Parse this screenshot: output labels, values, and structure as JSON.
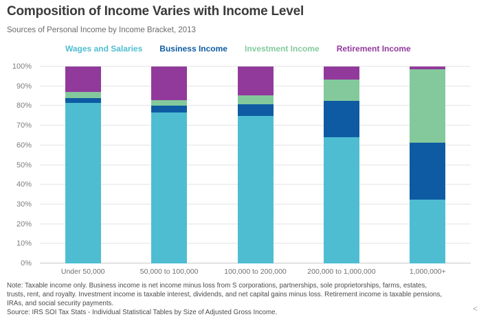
{
  "title": "Composition of Income Varies with Income Level",
  "subtitle": "Sources of Personal Income by Income Bracket, 2013",
  "legend": [
    {
      "label": "Wages and Salaries",
      "color": "#4fbdd1"
    },
    {
      "label": "Business Income",
      "color": "#0e5ba3"
    },
    {
      "label": "Investment Income",
      "color": "#83c99c"
    },
    {
      "label": "Retirement Income",
      "color": "#913a9c"
    }
  ],
  "chart_data": {
    "type": "bar",
    "stacked": true,
    "title": "Composition of Income Varies with Income Level",
    "subtitle": "Sources of Personal Income by Income Bracket, 2013",
    "xlabel": "",
    "ylabel": "",
    "ylim": [
      0,
      100
    ],
    "grid": true,
    "legend_position": "top",
    "units": "percent",
    "categories": [
      "Under 50,000",
      "50,000 to 100,000",
      "100,000 to 200,000",
      "200,000 to 1,000,000",
      "1,000,000+"
    ],
    "yticks": [
      "0%",
      "10%",
      "20%",
      "30%",
      "40%",
      "50%",
      "60%",
      "70%",
      "80%",
      "90%",
      "100%"
    ],
    "series": [
      {
        "name": "Wages and Salaries",
        "color": "#4fbdd1",
        "values": [
          81.5,
          76.5,
          75.0,
          64.0,
          32.5
        ]
      },
      {
        "name": "Business Income",
        "color": "#0e5ba3",
        "values": [
          2.5,
          3.5,
          6.0,
          18.5,
          29.0
        ]
      },
      {
        "name": "Investment Income",
        "color": "#83c99c",
        "values": [
          3.0,
          3.0,
          4.5,
          11.0,
          37.0
        ]
      },
      {
        "name": "Retirement Income",
        "color": "#913a9c",
        "values": [
          13.0,
          17.0,
          14.5,
          6.5,
          1.5
        ]
      }
    ]
  },
  "footer": {
    "note_lines": [
      "Note: Taxable income only. Business income is net income minus loss from S corporations, partnerships, sole proprietorships, farms, estates,",
      "trusts, rent, and royalty. Investment income is taxable interest, dividends, and net capital gains minus loss. Retirement income is taxable pensions,",
      "IRAs, and social security payments."
    ],
    "source": "Source: IRS SOI Tax Stats - Individual Statistical Tables by Size of Adjusted Gross Income."
  },
  "misc": {
    "corner_glyph": "<"
  }
}
